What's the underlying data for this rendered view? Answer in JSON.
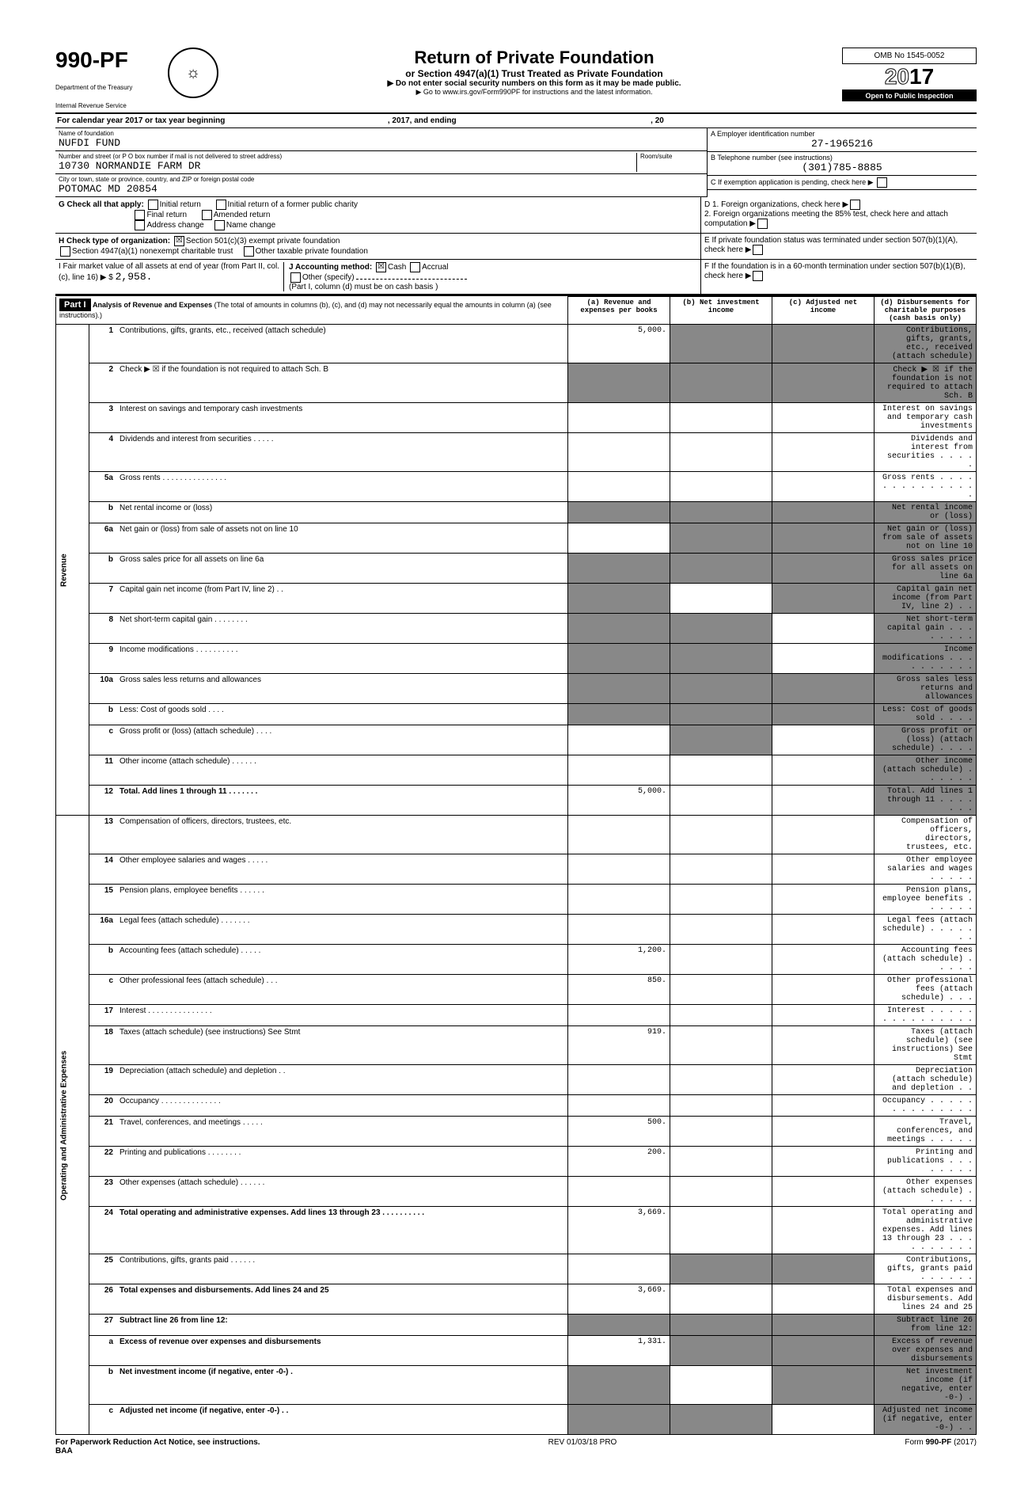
{
  "form": {
    "number": "990-PF",
    "dept": "Department of the Treasury",
    "irs": "Internal Revenue Service",
    "title": "Return of Private Foundation",
    "subtitle": "or Section 4947(a)(1) Trust Treated as Private Foundation",
    "note1": "▶ Do not enter social security numbers on this form as it may be made public.",
    "note2": "▶ Go to www.irs.gov/Form990PF for instructions and the latest information.",
    "omb": "OMB No 1545-0052",
    "year": "2017",
    "open": "Open to Public Inspection"
  },
  "cal": {
    "text1": "For calendar year 2017 or tax year beginning",
    "text2": ", 2017, and ending",
    "text3": ", 20"
  },
  "entity": {
    "name_label": "Name of foundation",
    "name": "NUFDI FUND",
    "addr_label": "Number and street (or P O box number if mail is not delivered to street address)",
    "room_label": "Room/suite",
    "addr": "10730 NORMANDIE FARM DR",
    "city_label": "City or town, state or province, country, and ZIP or foreign postal code",
    "city": "POTOMAC MD 20854",
    "ein_label": "A Employer identification number",
    "ein": "27-1965216",
    "phone_label": "B Telephone number (see instructions)",
    "phone": "(301)785-8885",
    "c_label": "C If exemption application is pending, check here ▶"
  },
  "g": {
    "label": "G Check all that apply:",
    "opt1": "Initial return",
    "opt2": "Final return",
    "opt3": "Address change",
    "opt4": "Initial return of a former public charity",
    "opt5": "Amended return",
    "opt6": "Name change"
  },
  "d": {
    "d1": "D 1. Foreign organizations, check here",
    "d2": "2. Foreign organizations meeting the 85% test, check here and attach computation"
  },
  "h": {
    "label": "H Check type of organization:",
    "opt1": "Section 501(c)(3) exempt private foundation",
    "opt2": "Section 4947(a)(1) nonexempt charitable trust",
    "opt3": "Other taxable private foundation"
  },
  "e": {
    "text": "E If private foundation status was terminated under section 507(b)(1)(A), check here"
  },
  "i": {
    "label": "I Fair market value of all assets at end of year (from Part II, col. (c), line 16) ▶ $",
    "value": "2,958."
  },
  "j": {
    "label": "J Accounting method:",
    "cash": "Cash",
    "accrual": "Accrual",
    "other": "Other (specify)",
    "note": "(Part I, column (d) must be on cash basis )"
  },
  "f": {
    "text": "F If the foundation is in a 60-month termination under section 507(b)(1)(B), check here"
  },
  "part1": {
    "label": "Part I",
    "title": "Analysis of Revenue and Expenses",
    "desc": "(The total of amounts in columns (b), (c), and (d) may not necessarily equal the amounts in column (a) (see instructions).)",
    "col_a": "(a) Revenue and expenses per books",
    "col_b": "(b) Net investment income",
    "col_c": "(c) Adjusted net income",
    "col_d": "(d) Disbursements for charitable purposes (cash basis only)"
  },
  "revenue_label": "Revenue",
  "expenses_label": "Operating and Administrative Expenses",
  "rows": [
    {
      "n": "1",
      "d": "Contributions, gifts, grants, etc., received (attach schedule)",
      "a": "5,000.",
      "sb": true,
      "sc": true,
      "sd": true
    },
    {
      "n": "2",
      "d": "Check ▶ ☒ if the foundation is not required to attach Sch. B",
      "sa": true,
      "sb": true,
      "sc": true,
      "sd": true
    },
    {
      "n": "3",
      "d": "Interest on savings and temporary cash investments"
    },
    {
      "n": "4",
      "d": "Dividends and interest from securities . . . . ."
    },
    {
      "n": "5a",
      "d": "Gross rents . . . . . . . . . . . . . . ."
    },
    {
      "n": "b",
      "d": "Net rental income or (loss)",
      "sa": true,
      "sb": true,
      "sc": true,
      "sd": true
    },
    {
      "n": "6a",
      "d": "Net gain or (loss) from sale of assets not on line 10",
      "sb": true,
      "sc": true,
      "sd": true
    },
    {
      "n": "b",
      "d": "Gross sales price for all assets on line 6a",
      "sa": true,
      "sb": true,
      "sc": true,
      "sd": true
    },
    {
      "n": "7",
      "d": "Capital gain net income (from Part IV, line 2) . .",
      "sa": true,
      "sc": true,
      "sd": true
    },
    {
      "n": "8",
      "d": "Net short-term capital gain . . . . . . . .",
      "sa": true,
      "sb": true,
      "sd": true
    },
    {
      "n": "9",
      "d": "Income modifications . . . . . . . . . .",
      "sa": true,
      "sb": true,
      "sd": true
    },
    {
      "n": "10a",
      "d": "Gross sales less returns and allowances",
      "sa": true,
      "sb": true,
      "sc": true,
      "sd": true
    },
    {
      "n": "b",
      "d": "Less: Cost of goods sold . . . .",
      "sa": true,
      "sb": true,
      "sc": true,
      "sd": true
    },
    {
      "n": "c",
      "d": "Gross profit or (loss) (attach schedule) . . . .",
      "sb": true,
      "sd": true
    },
    {
      "n": "11",
      "d": "Other income (attach schedule) . . . . . .",
      "sd": true
    },
    {
      "n": "12",
      "d": "Total. Add lines 1 through 11 . . . . . . .",
      "a": "5,000.",
      "sd": true,
      "bold": true
    },
    {
      "n": "13",
      "d": "Compensation of officers, directors, trustees, etc."
    },
    {
      "n": "14",
      "d": "Other employee salaries and wages . . . . ."
    },
    {
      "n": "15",
      "d": "Pension plans, employee benefits . . . . . ."
    },
    {
      "n": "16a",
      "d": "Legal fees (attach schedule) . . . . . . ."
    },
    {
      "n": "b",
      "d": "Accounting fees (attach schedule) . . . . .",
      "a": "1,200."
    },
    {
      "n": "c",
      "d": "Other professional fees (attach schedule) . . .",
      "a": "850."
    },
    {
      "n": "17",
      "d": "Interest . . . . . . . . . . . . . . ."
    },
    {
      "n": "18",
      "d": "Taxes (attach schedule) (see instructions) See Stmt",
      "a": "919."
    },
    {
      "n": "19",
      "d": "Depreciation (attach schedule) and depletion . ."
    },
    {
      "n": "20",
      "d": "Occupancy . . . . . . . . . . . . . ."
    },
    {
      "n": "21",
      "d": "Travel, conferences, and meetings . . . . .",
      "a": "500."
    },
    {
      "n": "22",
      "d": "Printing and publications . . . . . . . .",
      "a": "200."
    },
    {
      "n": "23",
      "d": "Other expenses (attach schedule) . . . . . ."
    },
    {
      "n": "24",
      "d": "Total operating and administrative expenses. Add lines 13 through 23 . . . . . . . . . .",
      "a": "3,669.",
      "bold": true
    },
    {
      "n": "25",
      "d": "Contributions, gifts, grants paid . . . . . .",
      "sb": true,
      "sc": true
    },
    {
      "n": "26",
      "d": "Total expenses and disbursements. Add lines 24 and 25",
      "a": "3,669.",
      "bold": true
    },
    {
      "n": "27",
      "d": "Subtract line 26 from line 12:",
      "sa": true,
      "sb": true,
      "sc": true,
      "sd": true,
      "bold": true
    },
    {
      "n": "a",
      "d": "Excess of revenue over expenses and disbursements",
      "a": "1,331.",
      "sb": true,
      "sc": true,
      "sd": true,
      "bold": true
    },
    {
      "n": "b",
      "d": "Net investment income (if negative, enter -0-) .",
      "sa": true,
      "sc": true,
      "sd": true,
      "bold": true
    },
    {
      "n": "c",
      "d": "Adjusted net income (if negative, enter -0-) . .",
      "sa": true,
      "sb": true,
      "sd": true,
      "bold": true
    }
  ],
  "footer": {
    "left": "For Paperwork Reduction Act Notice, see instructions.",
    "baa": "BAA",
    "rev": "REV 01/03/18 PRO",
    "right": "Form 990-PF (2017)"
  }
}
